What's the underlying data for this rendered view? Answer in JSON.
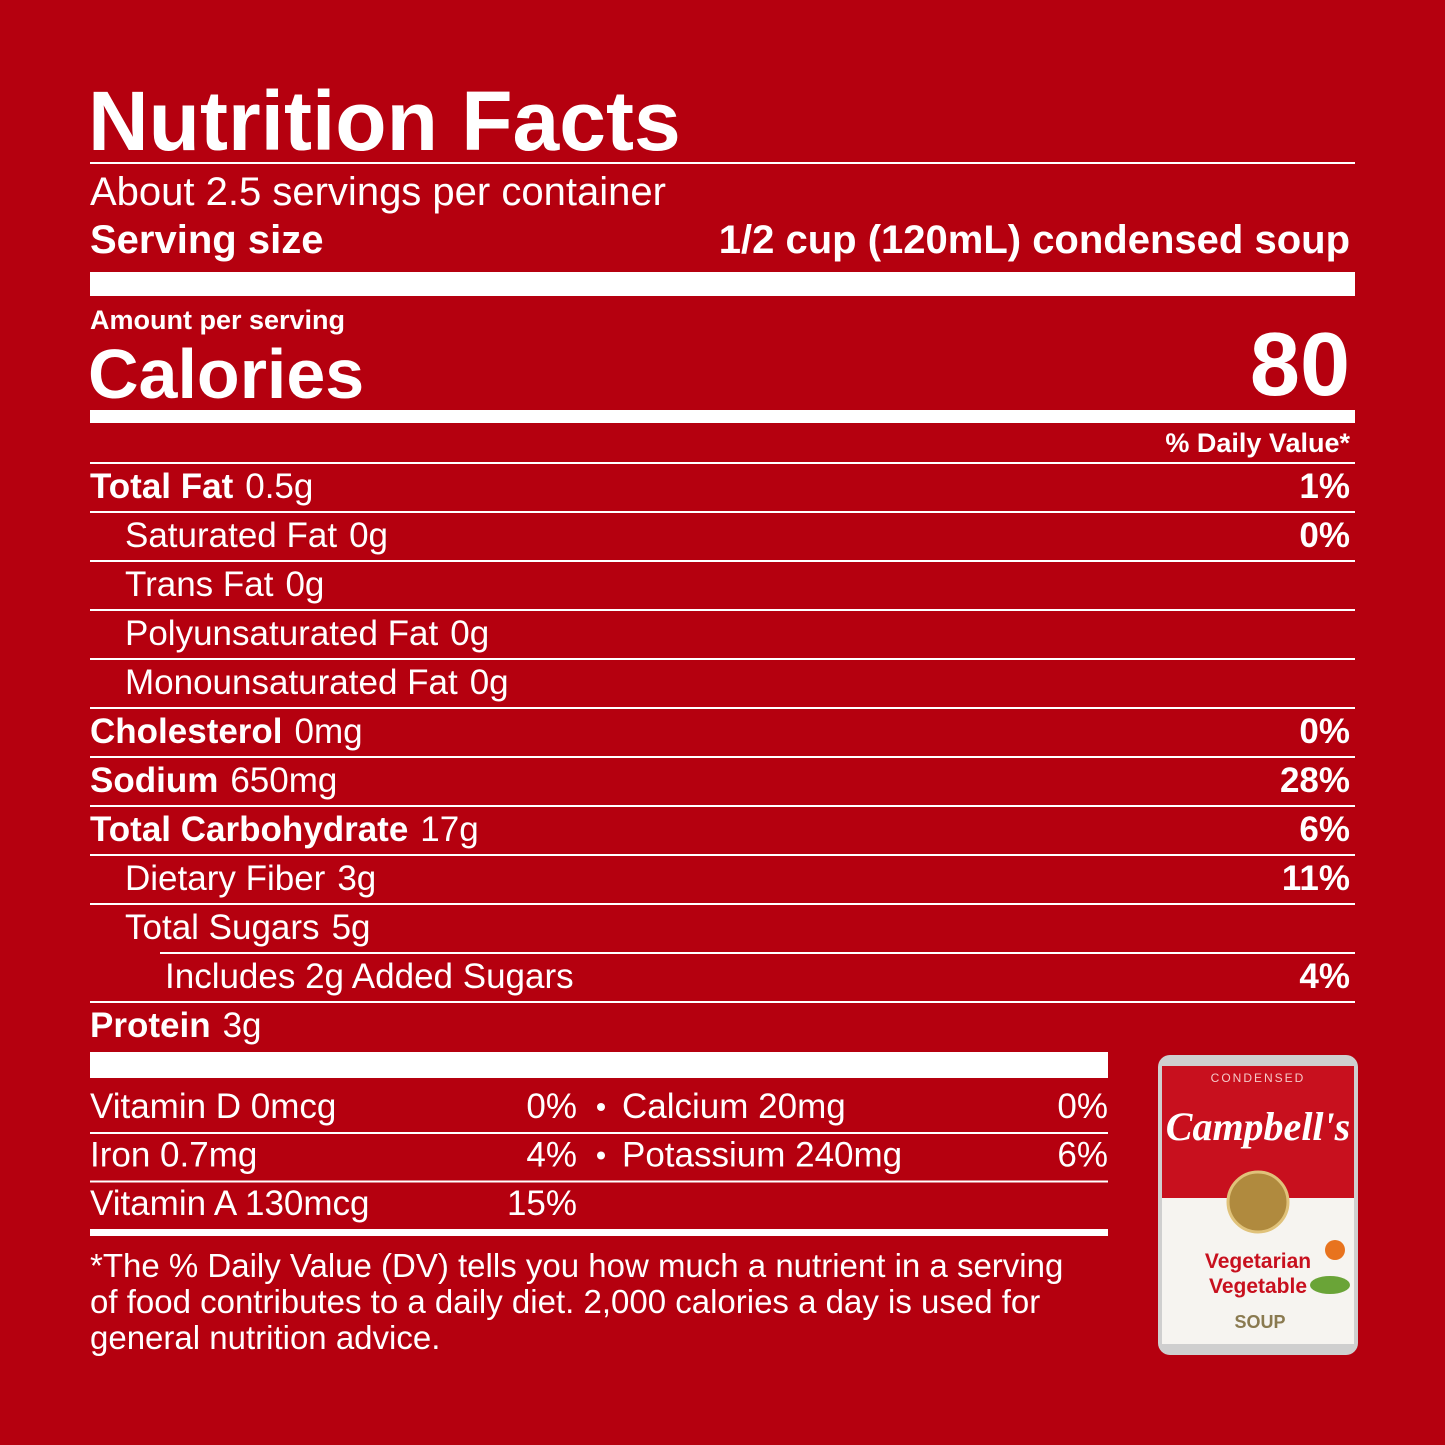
{
  "title": "Nutrition Facts",
  "servings": "About 2.5 servings per container",
  "serving_size": {
    "label": "Serving size",
    "value": "1/2 cup (120mL) condensed soup"
  },
  "amount_per_serving": "Amount per serving",
  "calories": {
    "label": "Calories",
    "value": 80
  },
  "dv_header": "% Daily Value*",
  "nutrients": [
    {
      "name": "Total Fat",
      "amount": "0.5g",
      "dv": "1%"
    },
    {
      "name": "Saturated Fat",
      "amount": "0g",
      "dv": "0%"
    },
    {
      "name": "Trans Fat",
      "amount": "0g"
    },
    {
      "name": "Polyunsaturated Fat",
      "amount": "0g"
    },
    {
      "name": "Monounsaturated Fat",
      "amount": "0g"
    },
    {
      "name": "Cholesterol",
      "amount": "0mg",
      "dv": "0%"
    },
    {
      "name": "Sodium",
      "amount": "650mg",
      "dv": "28%"
    },
    {
      "name": "Total Carbohydrate",
      "amount": "17g",
      "dv": "6%"
    },
    {
      "name": "Dietary Fiber",
      "amount": "3g",
      "dv": "11%"
    },
    {
      "name": "Total Sugars",
      "amount": "5g"
    },
    {
      "name": "Includes 2g Added Sugars",
      "dv": "4%"
    },
    {
      "name": "Protein",
      "amount": "3g"
    }
  ],
  "vitamins": [
    [
      {
        "name": "Vitamin D 0mcg",
        "dv": "0%"
      },
      {
        "name": "Calcium 20mg",
        "dv": "0%"
      }
    ],
    [
      {
        "name": "Iron 0.7mg",
        "dv": "4%"
      },
      {
        "name": "Potassium 240mg",
        "dv": "6%"
      }
    ],
    [
      {
        "name": "Vitamin A 130mcg",
        "dv": "15%"
      }
    ]
  ],
  "footnote": [
    "*The % Daily Value (DV) tells you how much a nutrient in a serving",
    "of food contributes to a daily diet. 2,000 calories a day is used for",
    "general nutrition advice."
  ],
  "product": {
    "label": "CONDENSED",
    "brand": "Campbell's",
    "variety": [
      "Vegetarian",
      "Vegetable"
    ],
    "kind": "SOUP"
  }
}
